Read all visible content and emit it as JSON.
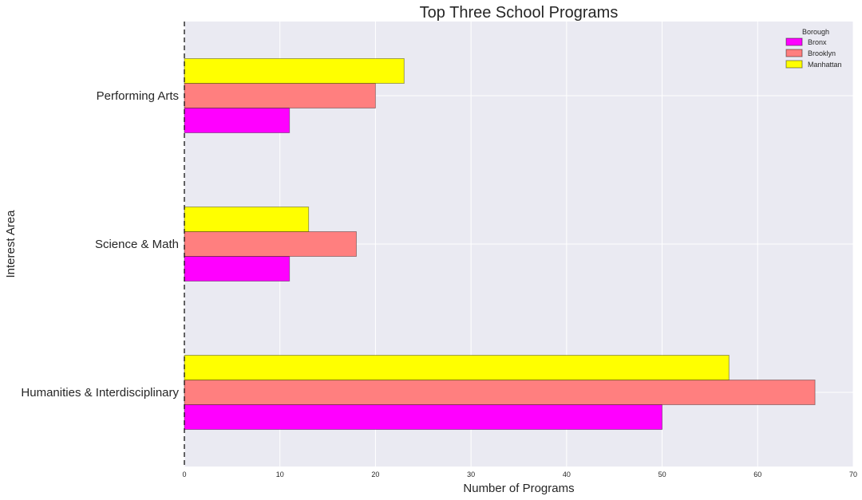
{
  "chart_data": {
    "type": "bar",
    "orientation": "horizontal",
    "title": "Top Three School Programs",
    "xlabel": "Number of Programs",
    "ylabel": "Interest Area",
    "categories": [
      "Humanities & Interdisciplinary",
      "Science & Math",
      "Performing Arts"
    ],
    "series": [
      {
        "name": "Bronx",
        "color": "#ff00ff",
        "values": [
          50,
          11,
          11
        ]
      },
      {
        "name": "Brooklyn",
        "color": "#ff7f7f",
        "values": [
          66,
          18,
          20
        ]
      },
      {
        "name": "Manhattan",
        "color": "#ffff00",
        "values": [
          57,
          13,
          23
        ]
      }
    ],
    "xlim": [
      0,
      70
    ],
    "xticks": [
      0,
      10,
      20,
      30,
      40,
      50,
      60,
      70
    ],
    "grid": true,
    "legend": {
      "title": "Borough",
      "position": "top-right"
    },
    "reference_line": {
      "x": 0,
      "style": "dashed",
      "color": "#000000"
    },
    "background_color": "#eaeaf2"
  }
}
